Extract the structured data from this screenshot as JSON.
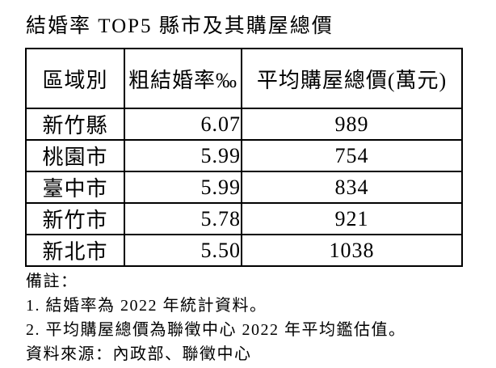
{
  "page": {
    "title": "結婚率 TOP5 縣市及其購屋總價"
  },
  "table": {
    "headers": {
      "region": "區域別",
      "rate": "粗結婚率‰",
      "price": "平均購屋總價(萬元)"
    },
    "rows": [
      {
        "region": "新竹縣",
        "rate": "6.07",
        "price": "989"
      },
      {
        "region": "桃園市",
        "rate": "5.99",
        "price": "754"
      },
      {
        "region": "臺中市",
        "rate": "5.99",
        "price": "834"
      },
      {
        "region": "新竹市",
        "rate": "5.78",
        "price": "921"
      },
      {
        "region": "新北市",
        "rate": "5.50",
        "price": "1038"
      }
    ]
  },
  "notes": {
    "label": "備註：",
    "note1": "1. 結婚率為 2022 年統計資料。",
    "note2": "2. 平均購屋總價為聯徵中心 2022 年平均鑑估值。",
    "source": "資料來源：內政部、聯徵中心"
  },
  "colors": {
    "text": "#000000",
    "border": "#000000",
    "background": "#ffffff"
  }
}
